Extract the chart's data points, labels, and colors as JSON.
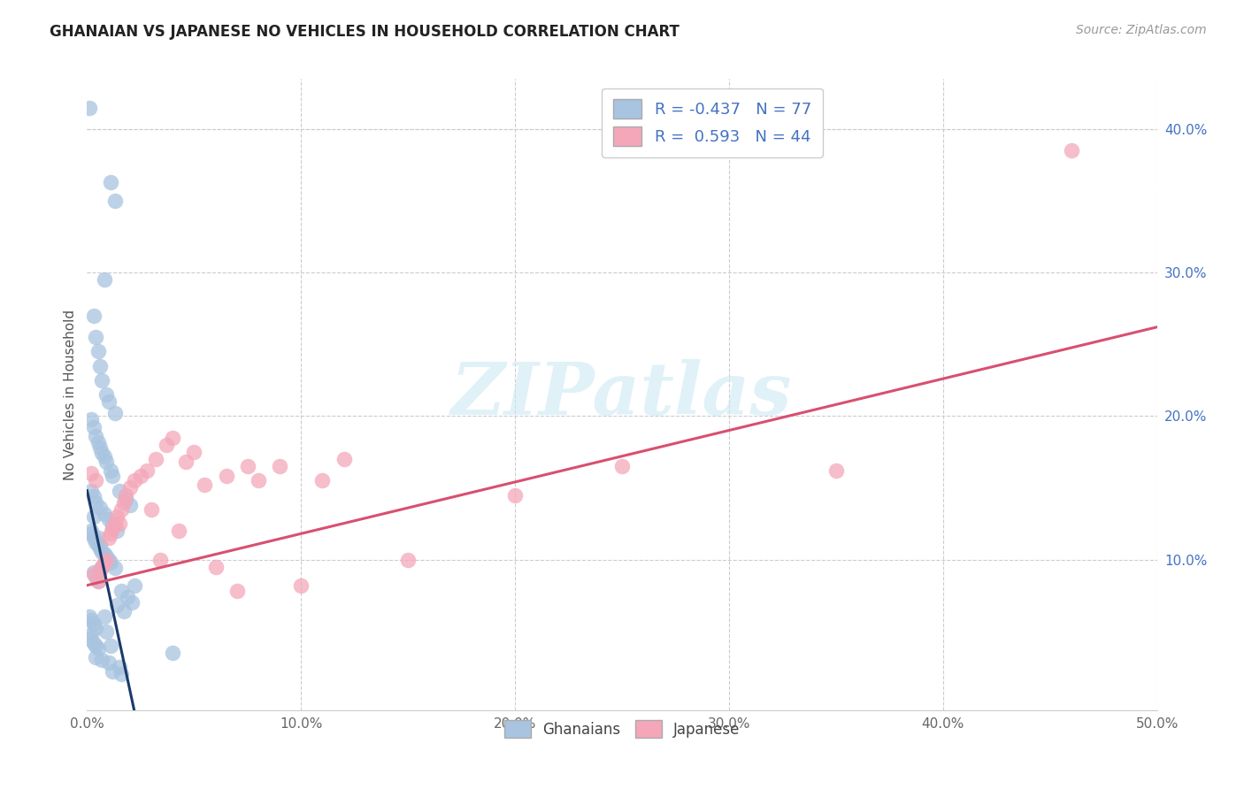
{
  "title": "GHANAIAN VS JAPANESE NO VEHICLES IN HOUSEHOLD CORRELATION CHART",
  "source": "Source: ZipAtlas.com",
  "ylabel": "No Vehicles in Household",
  "xlim": [
    0.0,
    0.5
  ],
  "ylim": [
    -0.005,
    0.435
  ],
  "plot_ylim": [
    -0.005,
    0.435
  ],
  "xtick_labels": [
    "0.0%",
    "10.0%",
    "20.0%",
    "30.0%",
    "40.0%",
    "50.0%"
  ],
  "xtick_vals": [
    0.0,
    0.1,
    0.2,
    0.3,
    0.4,
    0.5
  ],
  "ytick_labels_right": [
    "10.0%",
    "20.0%",
    "30.0%",
    "40.0%"
  ],
  "ytick_vals_right": [
    0.1,
    0.2,
    0.3,
    0.4
  ],
  "ghanaian_color": "#a8c4e0",
  "japanese_color": "#f4a7b9",
  "ghanaian_line_color": "#1a3a6b",
  "japanese_line_color": "#d94f70",
  "watermark_text": "ZIPatlas",
  "R_ghana": "-0.437",
  "N_ghana": "77",
  "R_japan": "0.593",
  "N_japan": "44",
  "legend_label_ghana": "Ghanaians",
  "legend_label_japan": "Japanese",
  "ghana_line_x0": 0.0,
  "ghana_line_y0": 0.148,
  "ghana_line_x1": 0.022,
  "ghana_line_y1": -0.005,
  "japan_line_x0": 0.0,
  "japan_line_y0": 0.082,
  "japan_line_x1": 0.5,
  "japan_line_y1": 0.262,
  "ghana_pts_x": [
    0.001,
    0.011,
    0.013,
    0.008,
    0.003,
    0.004,
    0.005,
    0.006,
    0.007,
    0.009,
    0.01,
    0.013,
    0.002,
    0.003,
    0.004,
    0.005,
    0.006,
    0.007,
    0.008,
    0.009,
    0.011,
    0.012,
    0.002,
    0.003,
    0.004,
    0.006,
    0.008,
    0.01,
    0.012,
    0.014,
    0.002,
    0.003,
    0.004,
    0.005,
    0.006,
    0.007,
    0.008,
    0.009,
    0.01,
    0.011,
    0.013,
    0.003,
    0.004,
    0.005,
    0.015,
    0.018,
    0.02,
    0.022,
    0.016,
    0.019,
    0.021,
    0.014,
    0.017,
    0.001,
    0.002,
    0.003,
    0.004,
    0.002,
    0.001,
    0.003,
    0.004,
    0.005,
    0.04,
    0.004,
    0.007,
    0.01,
    0.015,
    0.012,
    0.016,
    0.002,
    0.005,
    0.003,
    0.006,
    0.007,
    0.008,
    0.009,
    0.011
  ],
  "ghana_pts_y": [
    0.415,
    0.363,
    0.35,
    0.295,
    0.27,
    0.255,
    0.245,
    0.235,
    0.225,
    0.215,
    0.21,
    0.202,
    0.198,
    0.192,
    0.186,
    0.182,
    0.178,
    0.174,
    0.172,
    0.168,
    0.162,
    0.158,
    0.148,
    0.144,
    0.14,
    0.136,
    0.132,
    0.128,
    0.124,
    0.12,
    0.118,
    0.115,
    0.112,
    0.11,
    0.108,
    0.105,
    0.104,
    0.102,
    0.1,
    0.098,
    0.094,
    0.091,
    0.088,
    0.085,
    0.148,
    0.142,
    0.138,
    0.082,
    0.078,
    0.074,
    0.07,
    0.068,
    0.064,
    0.06,
    0.058,
    0.055,
    0.052,
    0.048,
    0.045,
    0.042,
    0.04,
    0.038,
    0.035,
    0.032,
    0.03,
    0.028,
    0.025,
    0.022,
    0.02,
    0.12,
    0.115,
    0.13,
    0.11,
    0.095,
    0.06,
    0.05,
    0.04
  ],
  "japan_pts_x": [
    0.002,
    0.004,
    0.005,
    0.006,
    0.007,
    0.008,
    0.009,
    0.01,
    0.011,
    0.012,
    0.013,
    0.014,
    0.015,
    0.016,
    0.017,
    0.018,
    0.02,
    0.022,
    0.025,
    0.028,
    0.03,
    0.032,
    0.034,
    0.037,
    0.04,
    0.043,
    0.046,
    0.05,
    0.055,
    0.06,
    0.065,
    0.07,
    0.075,
    0.08,
    0.09,
    0.1,
    0.11,
    0.12,
    0.15,
    0.2,
    0.25,
    0.35,
    0.46,
    0.003
  ],
  "japan_pts_y": [
    0.16,
    0.155,
    0.085,
    0.092,
    0.095,
    0.098,
    0.1,
    0.115,
    0.118,
    0.122,
    0.125,
    0.13,
    0.125,
    0.135,
    0.14,
    0.145,
    0.15,
    0.155,
    0.158,
    0.162,
    0.135,
    0.17,
    0.1,
    0.18,
    0.185,
    0.12,
    0.168,
    0.175,
    0.152,
    0.095,
    0.158,
    0.078,
    0.165,
    0.155,
    0.165,
    0.082,
    0.155,
    0.17,
    0.1,
    0.145,
    0.165,
    0.162,
    0.385,
    0.09
  ]
}
